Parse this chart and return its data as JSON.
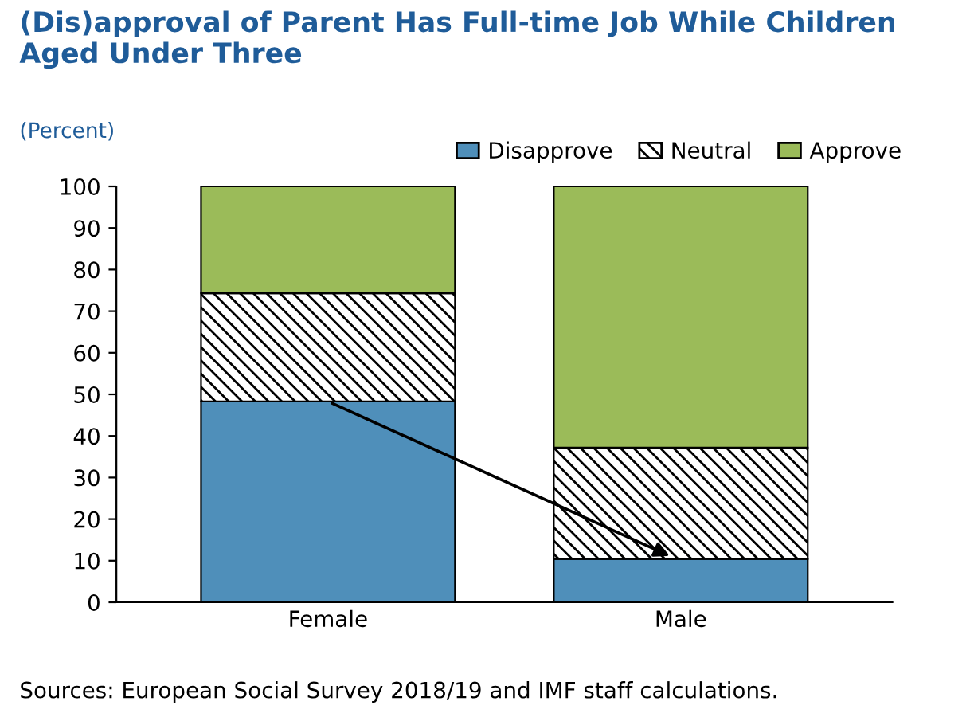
{
  "chart_data": {
    "type": "bar",
    "stacked": true,
    "title": "(Dis)approval of Parent Has Full-time Job While Children Aged Under Three",
    "subtitle": "(Percent)",
    "categories": [
      "Female",
      "Male"
    ],
    "series": [
      {
        "name": "Disapprove",
        "color": "#4f8fba",
        "values": [
          48.3,
          10.4
        ]
      },
      {
        "name": "Neutral",
        "color": "#000000",
        "values": [
          26.0,
          26.8
        ]
      },
      {
        "name": "Approve",
        "color": "#9bbb59",
        "values": [
          25.7,
          62.8
        ]
      }
    ],
    "ylim": [
      0,
      100
    ],
    "yticks": [
      0,
      10,
      20,
      30,
      40,
      50,
      60,
      70,
      80,
      90,
      100
    ],
    "grid": false,
    "legend": "top right",
    "annotations": [
      "Sources: European Social Survey 2018/19 and IMF staff calculations."
    ]
  }
}
